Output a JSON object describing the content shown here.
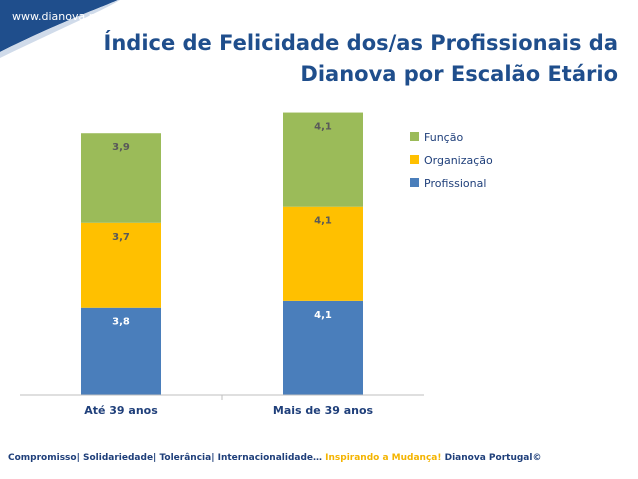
{
  "header": {
    "site_url": "www.dianova.pt",
    "title_line1": "Índice de Felicidade dos/as Profissionais da",
    "title_line2": "Dianova por Escalão Etário"
  },
  "colors": {
    "brand_blue": "#1f4e8c",
    "profissional": "#4a7ebb",
    "organizacao": "#ffc000",
    "funcao": "#9bbb59",
    "footer_accent": "#f4b400"
  },
  "chart_data": {
    "type": "bar",
    "stacked": true,
    "title": "Índice de Felicidade dos/as Profissionais da Dianova por Escalão Etário",
    "categories": [
      "Até 39 anos",
      "Mais de 39 anos"
    ],
    "series": [
      {
        "name": "Profissional",
        "values": [
          3.8,
          4.1
        ],
        "labels": [
          "3,8",
          "4,1"
        ],
        "color": "#4a7ebb"
      },
      {
        "name": "Organização",
        "values": [
          3.7,
          4.1
        ],
        "labels": [
          "3,7",
          "4,1"
        ],
        "color": "#ffc000"
      },
      {
        "name": "Função",
        "values": [
          3.9,
          4.1
        ],
        "labels": [
          "3,9",
          "4,1"
        ],
        "color": "#9bbb59"
      }
    ],
    "legend_order": [
      "Função",
      "Organização",
      "Profissional"
    ],
    "legend_position": "right",
    "ylim": [
      0,
      13.5
    ],
    "grid": false,
    "xlabel": "",
    "ylabel": ""
  },
  "footer": {
    "values_text": "Compromisso| Solidariedade| Tolerância| Internacionalidade…",
    "slogan": "Inspirando a Mudança!",
    "copyright": "Dianova Portugal©"
  }
}
